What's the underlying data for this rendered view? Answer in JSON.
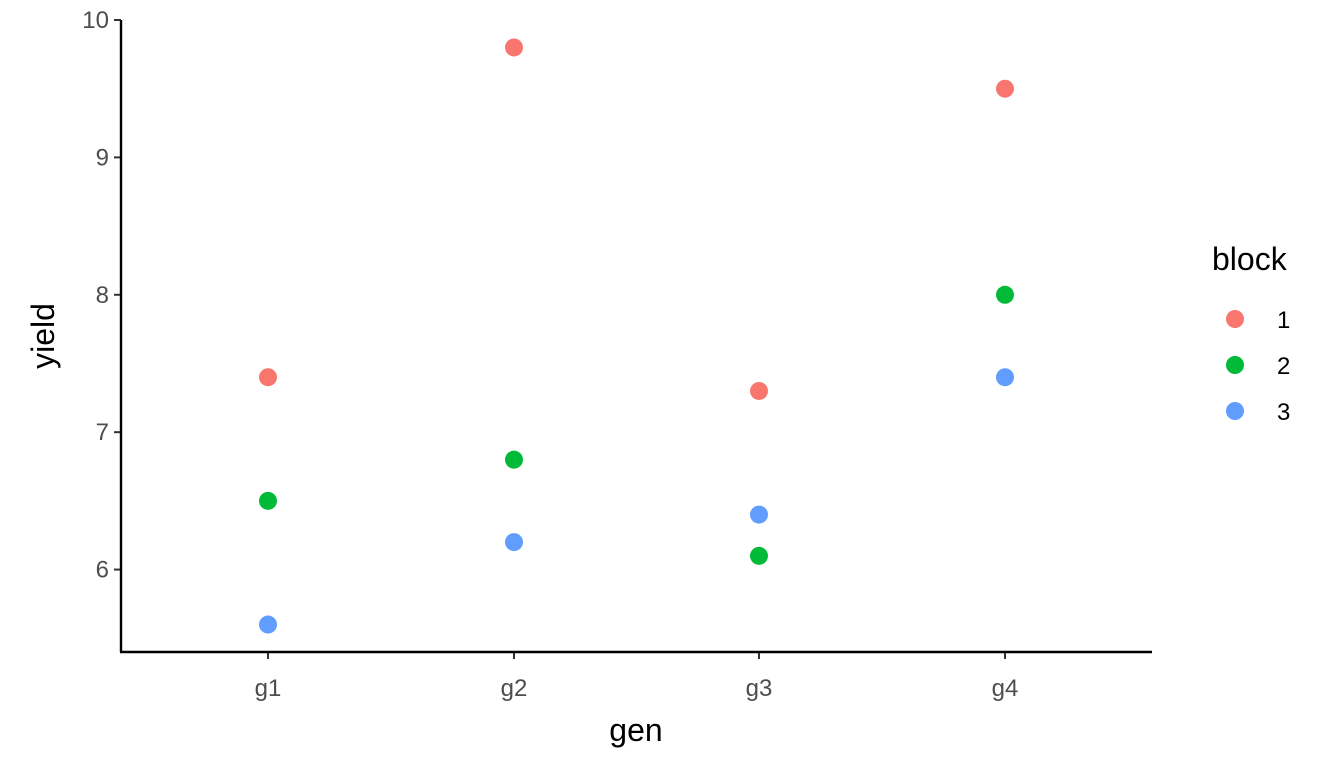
{
  "chart_data": {
    "type": "scatter",
    "x_type": "categorical",
    "categories": [
      "g1",
      "g2",
      "g3",
      "g4"
    ],
    "xlabel": "gen",
    "ylabel": "yield",
    "ylim": [
      5.4,
      10.0
    ],
    "y_ticks": [
      "6",
      "7",
      "8",
      "9",
      "10"
    ],
    "grid": false,
    "legend": {
      "title": "block",
      "placement": "right",
      "entries": [
        "1",
        "2",
        "3"
      ]
    },
    "series": [
      {
        "name": "1",
        "color": "#F8766D",
        "values": [
          7.4,
          9.8,
          7.3,
          9.5
        ]
      },
      {
        "name": "2",
        "color": "#00BA38",
        "values": [
          6.5,
          6.8,
          6.1,
          8.0
        ]
      },
      {
        "name": "3",
        "color": "#619CFF",
        "values": [
          5.6,
          6.2,
          6.4,
          7.4
        ]
      }
    ]
  }
}
